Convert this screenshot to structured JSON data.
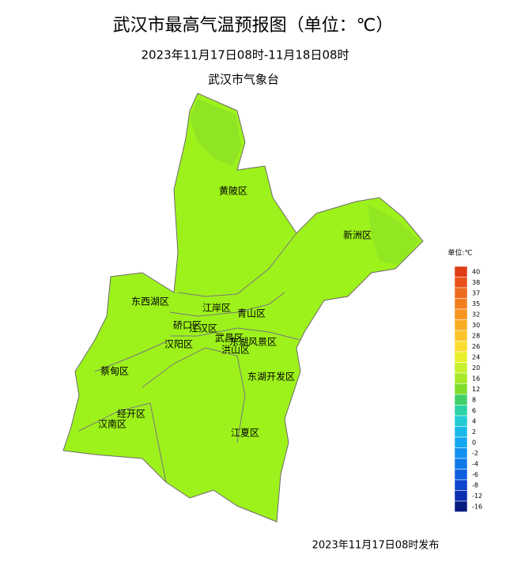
{
  "header": {
    "title": "武汉市最高气温预报图（单位：℃）",
    "subtitle": "2023年11月17日08时-11月18日08时",
    "agency": "武汉市气象台"
  },
  "districts": [
    "黄陂区",
    "新洲区",
    "东西湖区",
    "江岸区",
    "青山区",
    "硚口区",
    "江汉区",
    "汉阳区",
    "武昌区",
    "东湖风景区",
    "洪山区",
    "蔡甸区",
    "东湖开发区",
    "经开区",
    "汉南区",
    "江夏区"
  ],
  "legend": {
    "title": "单位:℃",
    "items": [
      {
        "value": 40,
        "color": "#e03c18"
      },
      {
        "value": 38,
        "color": "#e8521a"
      },
      {
        "value": 37,
        "color": "#ee6a1c"
      },
      {
        "value": 35,
        "color": "#f27f1e"
      },
      {
        "value": 32,
        "color": "#f6961f"
      },
      {
        "value": 30,
        "color": "#f9ab22"
      },
      {
        "value": 28,
        "color": "#fcc32a"
      },
      {
        "value": 26,
        "color": "#fddc33"
      },
      {
        "value": 24,
        "color": "#e8ef2b"
      },
      {
        "value": 20,
        "color": "#c7f02d"
      },
      {
        "value": 16,
        "color": "#a6e82a"
      },
      {
        "value": 12,
        "color": "#7fdc29"
      },
      {
        "value": 8,
        "color": "#3fd06a"
      },
      {
        "value": 6,
        "color": "#2cd1a8"
      },
      {
        "value": 4,
        "color": "#22ccd2"
      },
      {
        "value": 2,
        "color": "#1ab8e8"
      },
      {
        "value": 0,
        "color": "#14a6f0"
      },
      {
        "value": -2,
        "color": "#1291f0"
      },
      {
        "value": -4,
        "color": "#1079ea"
      },
      {
        "value": -6,
        "color": "#0e5fe0"
      },
      {
        "value": -8,
        "color": "#0c46cc"
      },
      {
        "value": -12,
        "color": "#0a2fb0"
      },
      {
        "value": -16,
        "color": "#081c80"
      }
    ]
  },
  "footer": {
    "release": "2023年11月17日08时发布"
  }
}
